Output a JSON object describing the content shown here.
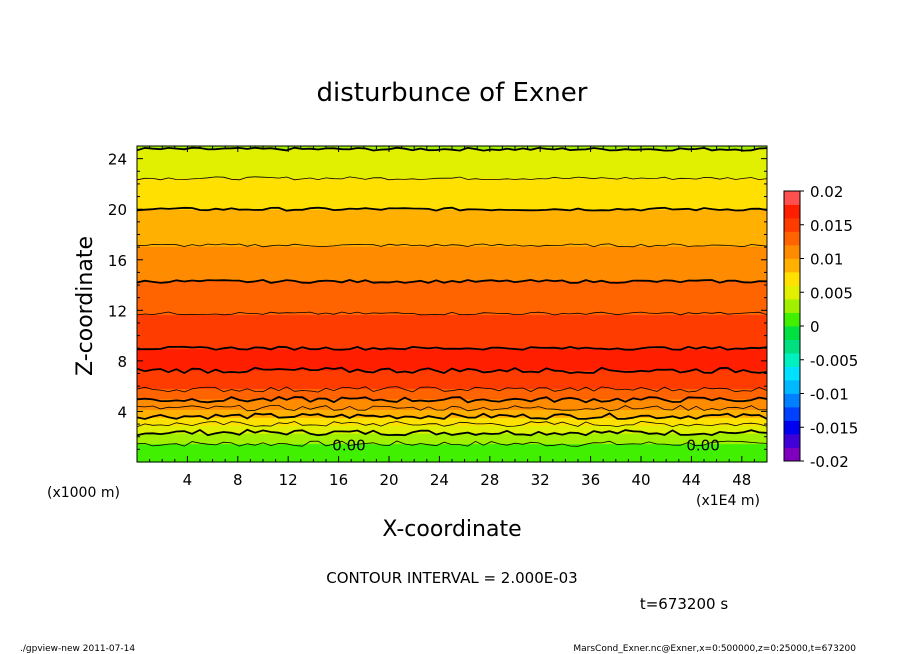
{
  "chart_data": {
    "type": "heatmap",
    "title": "disturbunce of Exner",
    "xlabel": "X-coordinate",
    "ylabel": "Z-coordinate",
    "x_unit_left": "(x1000 m)",
    "x_unit_right": "(x1E4 m)",
    "xlim": [
      0,
      50
    ],
    "ylim": [
      0,
      25
    ],
    "x_ticks": [
      4,
      8,
      12,
      16,
      20,
      24,
      28,
      32,
      36,
      40,
      44,
      48
    ],
    "y_ticks": [
      4,
      8,
      12,
      16,
      20,
      24
    ],
    "contour_labels": [
      {
        "x": 15.5,
        "y": 0.9,
        "text": "0.00"
      },
      {
        "x": 43.6,
        "y": 0.9,
        "text": "0.00"
      }
    ],
    "colorbar": {
      "levels": [
        -0.02,
        -0.018,
        -0.016,
        -0.014,
        -0.012,
        -0.01,
        -0.008,
        -0.006,
        -0.004,
        -0.002,
        0,
        0.002,
        0.004,
        0.006,
        0.008,
        0.01,
        0.012,
        0.014,
        0.016,
        0.018,
        0.02
      ],
      "tick_labels": [
        "-0.02",
        "-0.015",
        "-0.01",
        "-0.005",
        "0",
        "0.005",
        "0.01",
        "0.015",
        "0.02"
      ],
      "tick_values": [
        -0.02,
        -0.015,
        -0.01,
        -0.005,
        0,
        0.005,
        0.01,
        0.015,
        0.02
      ],
      "colors": [
        "#8000c0",
        "#4000d8",
        "#0000f0",
        "#0040ff",
        "#0080ff",
        "#00b8ff",
        "#00e0ff",
        "#00f0c0",
        "#00e080",
        "#00e040",
        "#40f000",
        "#a0f000",
        "#e0f000",
        "#ffe000",
        "#ffb000",
        "#ff8c00",
        "#ff6400",
        "#ff3c00",
        "#ff1e00",
        "#ff5050",
        "#ff9090"
      ]
    },
    "profile": [
      {
        "z": 0,
        "v": 0.0004
      },
      {
        "z": 1,
        "v": 0.0012
      },
      {
        "z": 2,
        "v": 0.003
      },
      {
        "z": 3,
        "v": 0.006
      },
      {
        "z": 4,
        "v": 0.0092
      },
      {
        "z": 5,
        "v": 0.0122
      },
      {
        "z": 6,
        "v": 0.0146
      },
      {
        "z": 7,
        "v": 0.0159
      },
      {
        "z": 8,
        "v": 0.0163
      },
      {
        "z": 9,
        "v": 0.016
      },
      {
        "z": 10,
        "v": 0.0153
      },
      {
        "z": 11,
        "v": 0.0146
      },
      {
        "z": 12,
        "v": 0.0138
      },
      {
        "z": 13,
        "v": 0.013
      },
      {
        "z": 14,
        "v": 0.0122
      },
      {
        "z": 15,
        "v": 0.0115
      },
      {
        "z": 16,
        "v": 0.0108
      },
      {
        "z": 17,
        "v": 0.0101
      },
      {
        "z": 18,
        "v": 0.0094
      },
      {
        "z": 19,
        "v": 0.0087
      },
      {
        "z": 20,
        "v": 0.008
      },
      {
        "z": 21,
        "v": 0.0072
      },
      {
        "z": 22,
        "v": 0.0064
      },
      {
        "z": 23,
        "v": 0.0055
      },
      {
        "z": 24,
        "v": 0.0046
      },
      {
        "z": 25,
        "v": 0.0038
      }
    ]
  },
  "contour_interval_text": "CONTOUR INTERVAL = 2.000E-03",
  "time_text": "t=673200 s",
  "footer_left": "./gpview-new   2011-07-14",
  "footer_right": "MarsCond_Exner.nc@Exner,x=0:500000,z=0:25000,t=673200"
}
